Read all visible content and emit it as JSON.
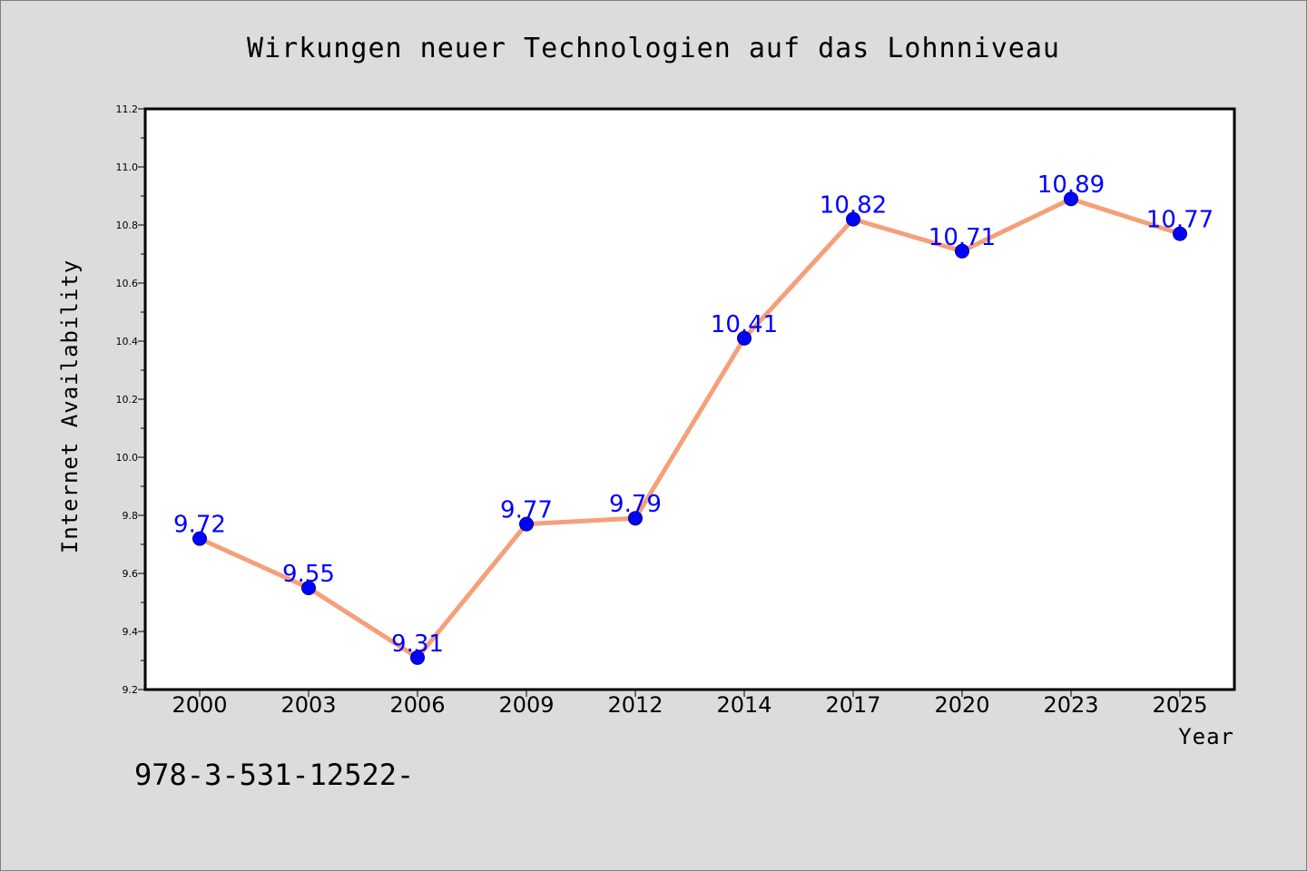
{
  "chart_data": {
    "type": "line",
    "title": "Wirkungen neuer Technologien auf das Lohnniveau",
    "xlabel": "Year",
    "ylabel": "Internet Availability",
    "categories": [
      "2000",
      "2003",
      "2006",
      "2009",
      "2012",
      "2014",
      "2017",
      "2020",
      "2023",
      "2025"
    ],
    "values": [
      9.72,
      9.55,
      9.31,
      9.77,
      9.79,
      10.41,
      10.82,
      10.71,
      10.89,
      10.77
    ],
    "ylim": [
      9.2,
      11.2
    ],
    "yticks": [
      "9.2",
      "9.4",
      "9.6",
      "9.8",
      "10.0",
      "10.2",
      "10.4",
      "10.6",
      "10.8",
      "11.0",
      "11.2"
    ],
    "data_labels": [
      "9.72",
      "9.55",
      "9.31",
      "9.77",
      "9.79",
      "10.41",
      "10.82",
      "10.71",
      "10.89",
      "10.77"
    ],
    "grid": false,
    "line_color": "#f4a07a",
    "marker_color": "#0000ff",
    "label_color": "#0000ff",
    "background_color": "#dcdcdc",
    "plot_background": "#ffffff"
  },
  "footer": {
    "text": "978-3-531-12522-"
  }
}
